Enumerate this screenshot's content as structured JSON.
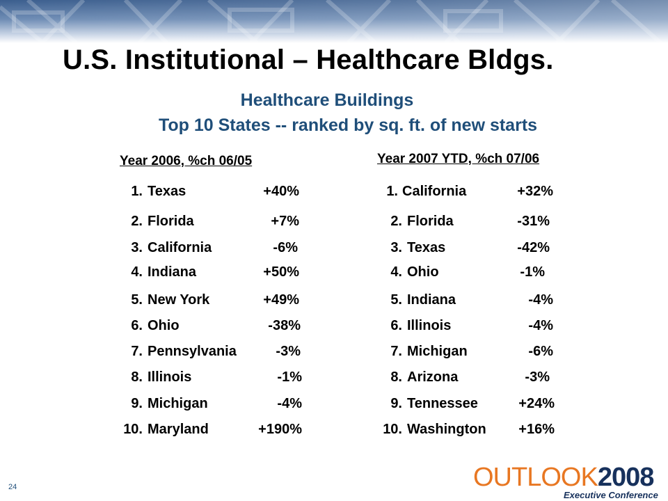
{
  "page": {
    "title": "U.S. Institutional – Healthcare Bldgs.",
    "subtitle_line1": "Healthcare Buildings",
    "subtitle_line2": "Top 10 States -- ranked by sq. ft. of new starts",
    "page_number": "24"
  },
  "left": {
    "heading": "Year 2006, %ch 06/05",
    "rows": [
      {
        "num": "1.",
        "state": "Texas",
        "pct": "+40%"
      },
      {
        "num": "2.",
        "state": "Florida",
        "pct": "+7%"
      },
      {
        "num": "3.",
        "state": "California",
        "pct": "-6%"
      },
      {
        "num": "4.",
        "state": "Indiana",
        "pct": "+50%"
      },
      {
        "num": "5.",
        "state": "New York",
        "pct": "+49%"
      },
      {
        "num": "6.",
        "state": "Ohio",
        "pct": "-38%"
      },
      {
        "num": "7.",
        "state": "Pennsylvania",
        "pct": "-3%"
      },
      {
        "num": "8.",
        "state": "Illinois",
        "pct": "-1%"
      },
      {
        "num": "9.",
        "state": "Michigan",
        "pct": "-4%"
      },
      {
        "num": "10.",
        "state": "Maryland",
        "pct": "+190%"
      }
    ]
  },
  "right": {
    "heading": "Year 2007 YTD, %ch 07/06",
    "rows": [
      {
        "num": "1.",
        "state": "California",
        "pct": "+32%"
      },
      {
        "num": "2.",
        "state": "Florida",
        "pct": "-31%"
      },
      {
        "num": "3.",
        "state": "Texas",
        "pct": "-42%"
      },
      {
        "num": "4.",
        "state": "Ohio",
        "pct": "-1%"
      },
      {
        "num": "5.",
        "state": "Indiana",
        "pct": "-4%"
      },
      {
        "num": "6.",
        "state": "Illinois",
        "pct": "-4%"
      },
      {
        "num": "7.",
        "state": "Michigan",
        "pct": "-6%"
      },
      {
        "num": "8.",
        "state": "Arizona",
        "pct": "-3%"
      },
      {
        "num": "9.",
        "state": "Tennessee",
        "pct": "+24%"
      },
      {
        "num": "10.",
        "state": "Washington",
        "pct": "+16%"
      }
    ]
  },
  "logo": {
    "word": "OUTLOOK",
    "year": "2008",
    "tagline": "Executive Conference"
  },
  "colors": {
    "subtitle": "#1f4e79",
    "logo_orange": "#e87722",
    "logo_navy": "#17315c",
    "banner_blue": "#3b5e8e"
  }
}
